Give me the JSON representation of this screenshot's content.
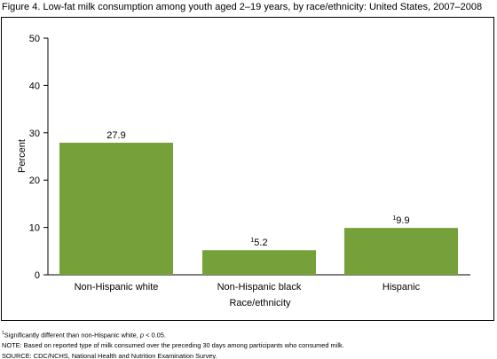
{
  "title": "Figure 4. Low-fat milk consumption among youth aged 2–19 years, by race/ethnicity: United States, 2007–2008",
  "chart_data": {
    "type": "bar",
    "categories": [
      "Non-Hispanic white",
      "Non-Hispanic black",
      "Hispanic"
    ],
    "values": [
      27.9,
      5.2,
      9.9
    ],
    "data_labels": [
      "27.9",
      "5.2",
      "9.9"
    ],
    "label_superscripts": [
      "",
      "1",
      "1"
    ],
    "xlabel": "Race/ethnicity",
    "ylabel": "Percent",
    "ylim": [
      0,
      50
    ],
    "yticks": [
      "0",
      "10",
      "20",
      "30",
      "40",
      "50"
    ],
    "grid": false,
    "bar_color": "#76a13a"
  },
  "footnotes": {
    "sig_mark": "1",
    "sig_text": "Significantly different than non-Hispanic white, ",
    "sig_p": "p",
    "sig_tail": " < 0.05.",
    "note": "NOTE: Based on reported type of milk consumed over the preceding 30 days among participants who consumed milk.",
    "source": "SOURCE: CDC/NCHS, National Health and Nutrition Examination Survey."
  }
}
